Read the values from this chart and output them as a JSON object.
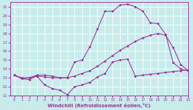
{
  "xlabel": "Windchill (Refroidissement éolien,°C)",
  "xlim": [
    -0.5,
    23
  ],
  "ylim": [
    11,
    21.5
  ],
  "xticks": [
    0,
    1,
    2,
    3,
    4,
    5,
    6,
    7,
    8,
    9,
    10,
    11,
    12,
    13,
    14,
    15,
    16,
    17,
    18,
    19,
    20,
    21,
    22,
    23
  ],
  "yticks": [
    11,
    12,
    13,
    14,
    15,
    16,
    17,
    18,
    19,
    20,
    21
  ],
  "bg_color": "#c8ecec",
  "grid_color": "#ffffff",
  "line_color": "#993399",
  "line1_x": [
    0,
    1,
    2,
    3,
    4,
    5,
    6,
    7,
    8,
    9,
    10,
    11,
    12,
    13,
    14,
    15,
    16,
    17,
    18,
    19,
    20,
    21,
    22,
    23
  ],
  "line1_y": [
    13.3,
    12.9,
    12.8,
    13.2,
    12.2,
    11.8,
    11.6,
    11.1,
    12.0,
    12.2,
    12.5,
    13.1,
    13.5,
    14.8,
    15.0,
    15.1,
    13.2,
    13.3,
    13.4,
    13.5,
    13.6,
    13.7,
    13.8,
    13.9
  ],
  "line2_x": [
    0,
    1,
    2,
    3,
    4,
    5,
    6,
    7,
    8,
    9,
    10,
    11,
    12,
    13,
    14,
    15,
    16,
    17,
    18,
    19,
    20,
    21,
    22,
    23
  ],
  "line2_y": [
    13.3,
    12.9,
    13.0,
    13.3,
    13.3,
    13.2,
    13.0,
    13.0,
    14.8,
    15.0,
    16.5,
    18.5,
    20.5,
    20.5,
    21.2,
    21.3,
    21.0,
    20.5,
    19.2,
    19.1,
    17.9,
    14.7,
    14.0,
    13.8
  ],
  "line3_x": [
    0,
    1,
    2,
    3,
    4,
    5,
    6,
    7,
    8,
    9,
    10,
    11,
    12,
    13,
    14,
    15,
    16,
    17,
    18,
    19,
    20,
    21,
    22,
    23
  ],
  "line3_y": [
    13.3,
    13.0,
    13.0,
    13.2,
    13.1,
    13.0,
    13.0,
    13.0,
    13.2,
    13.5,
    13.8,
    14.3,
    14.9,
    15.5,
    16.1,
    16.6,
    17.1,
    17.5,
    17.8,
    18.0,
    17.8,
    16.4,
    14.5,
    13.8
  ],
  "marker": "D",
  "markersize": 2.0,
  "linewidth": 0.8
}
